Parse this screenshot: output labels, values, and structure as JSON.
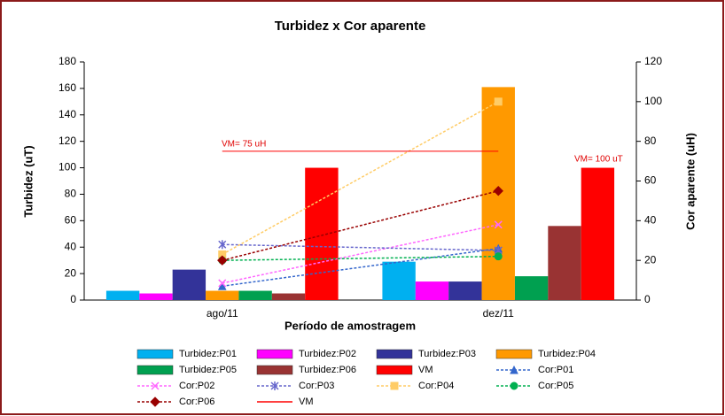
{
  "chart_data": {
    "type": "combo",
    "title": "Turbidez x Cor aparente",
    "x_label": "Período de amostragem",
    "y_label": "Turbidez (uT)",
    "y2_label": "Cor aparente (uH)",
    "categories": [
      "ago/11",
      "dez/11"
    ],
    "ylim": [
      0,
      180
    ],
    "yticks": [
      0,
      20,
      40,
      60,
      80,
      100,
      120,
      140,
      160,
      180
    ],
    "y2lim": [
      0,
      120
    ],
    "y2ticks": [
      0,
      20,
      40,
      60,
      80,
      100,
      120
    ],
    "annotations": [
      "VM= 75 uH",
      "VM= 100 uT"
    ],
    "series": [
      {
        "name": "Turbidez:P01",
        "type": "bar",
        "color": "#00b0f0",
        "values": [
          7,
          29
        ]
      },
      {
        "name": "Turbidez:P02",
        "type": "bar",
        "color": "#ff00ff",
        "values": [
          5,
          14
        ]
      },
      {
        "name": "Turbidez:P03",
        "type": "bar",
        "color": "#333399",
        "values": [
          23,
          14
        ]
      },
      {
        "name": "Turbidez:P04",
        "type": "bar",
        "color": "#ff9900",
        "values": [
          7,
          161
        ]
      },
      {
        "name": "Turbidez:P05",
        "type": "bar",
        "color": "#00a050",
        "values": [
          7,
          18
        ]
      },
      {
        "name": "Turbidez:P06",
        "type": "bar",
        "color": "#993333",
        "values": [
          5,
          56
        ]
      },
      {
        "name": "VM",
        "type": "bar",
        "color": "#ff0000",
        "values": [
          100,
          100
        ]
      },
      {
        "name": "Cor:P01",
        "type": "line",
        "axis": "y2",
        "color": "#3366cc",
        "marker": "triangle",
        "values": [
          7,
          26
        ]
      },
      {
        "name": "Cor:P02",
        "type": "line",
        "axis": "y2",
        "color": "#ff66ff",
        "marker": "x",
        "values": [
          8.5,
          38
        ]
      },
      {
        "name": "Cor:P03",
        "type": "line",
        "axis": "y2",
        "color": "#6666cc",
        "marker": "star",
        "values": [
          28,
          25
        ]
      },
      {
        "name": "Cor:P04",
        "type": "line",
        "axis": "y2",
        "color": "#ffcc66",
        "marker": "square",
        "values": [
          23,
          100
        ]
      },
      {
        "name": "Cor:P05",
        "type": "line",
        "axis": "y2",
        "color": "#00b050",
        "marker": "circle",
        "values": [
          20,
          22
        ]
      },
      {
        "name": "Cor:P06",
        "type": "line",
        "axis": "y2",
        "color": "#990000",
        "marker": "diamond",
        "values": [
          20,
          55
        ]
      },
      {
        "name": "VM",
        "type": "line",
        "axis": "y2",
        "color": "#ff0000",
        "marker": "none",
        "values": [
          75,
          75
        ]
      }
    ]
  }
}
